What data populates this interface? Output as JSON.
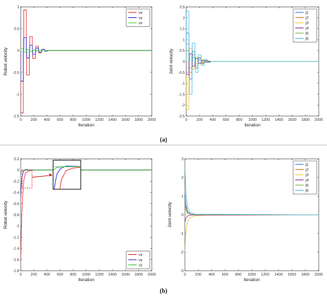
{
  "captions": [
    "(a)",
    "(b)"
  ],
  "colors": {
    "x": "#e8232a",
    "y": "#2424d8",
    "z": "#33cc33",
    "j1": "#1f77d4",
    "j2": "#e8702a",
    "j3": "#f2c12e",
    "j4": "#7e2f8e",
    "j5": "#77ac30",
    "j6": "#4dbeee",
    "arrow": "#c00000"
  },
  "chart_data": [
    {
      "type": "line",
      "panel": "(a) left",
      "xlabel": "Iteration",
      "ylabel": "Robot velocity",
      "xlim": [
        0,
        2000
      ],
      "ylim": [
        -1.5,
        1
      ],
      "xticks": [
        "0",
        "200",
        "400",
        "600",
        "800",
        "1000",
        "1200",
        "1400",
        "1600",
        "1800",
        "2000"
      ],
      "yticks": [
        "-1.5",
        "-1",
        "-0.5",
        "0",
        "0.5",
        "1"
      ],
      "legend": {
        "position": "top-right"
      },
      "grid": false,
      "series": [
        {
          "name": "vx",
          "color_key": "x",
          "style": "square-oscillation",
          "amplitudes": [
            -1.43,
            0.93,
            -0.56,
            0.32,
            -0.18,
            0.1,
            -0.055,
            0.03,
            -0.015
          ],
          "half_period": 40,
          "settle": 600
        },
        {
          "name": "vy",
          "color_key": "y",
          "style": "square-oscillation",
          "amplitudes": [
            -0.7,
            0.3,
            -0.17,
            0.12,
            -0.09,
            0.06,
            -0.04,
            0.025,
            -0.012
          ],
          "half_period": 40,
          "settle": 600
        },
        {
          "name": "vz",
          "color_key": "z",
          "style": "square-oscillation",
          "amplitudes": [
            0.05,
            -0.04,
            0.03,
            -0.02,
            0.015,
            -0.01,
            0.006,
            -0.004
          ],
          "half_period": 40,
          "settle": 600
        }
      ]
    },
    {
      "type": "line",
      "panel": "(a) right",
      "xlabel": "Iteration",
      "ylabel": "Joint velocity",
      "xlim": [
        0,
        2000
      ],
      "ylim": [
        -2.5,
        2.5
      ],
      "xticks": [
        "0",
        "200",
        "400",
        "600",
        "800",
        "1000",
        "1200",
        "1400",
        "1600",
        "1800",
        "2000"
      ],
      "yticks": [
        "-2.5",
        "-2",
        "-1.5",
        "-1",
        "-0.5",
        "0",
        "0.5",
        "1",
        "1.5",
        "2",
        "2.5"
      ],
      "legend": {
        "position": "top-right"
      },
      "grid": false,
      "series": [
        {
          "name": "j1",
          "color_key": "j1",
          "style": "square-oscillation",
          "amplitudes": [
            1.3,
            -0.8,
            0.45,
            -0.3,
            0.18,
            -0.1,
            0.05,
            -0.02
          ],
          "half_period": 40,
          "settle": 550
        },
        {
          "name": "j2",
          "color_key": "j2",
          "style": "square-oscillation",
          "amplitudes": [
            0.8,
            -0.5,
            0.3,
            -0.2,
            0.12,
            -0.07,
            0.04,
            -0.02
          ],
          "half_period": 40,
          "settle": 550
        },
        {
          "name": "j3",
          "color_key": "j3",
          "style": "square-oscillation",
          "amplitudes": [
            -2.2,
            0.6,
            -0.35,
            0.2,
            -0.12,
            0.07,
            -0.04,
            0.02
          ],
          "half_period": 40,
          "settle": 550
        },
        {
          "name": "j4",
          "color_key": "j4",
          "style": "square-oscillation",
          "amplitudes": [
            -0.6,
            0.35,
            -0.22,
            0.14,
            -0.08,
            0.05,
            -0.03,
            0.015
          ],
          "half_period": 40,
          "settle": 550
        },
        {
          "name": "j5",
          "color_key": "j5",
          "style": "square-oscillation",
          "amplitudes": [
            0.5,
            -0.3,
            0.18,
            -0.1,
            0.06,
            -0.03,
            0.02,
            -0.01
          ],
          "half_period": 40,
          "settle": 550
        },
        {
          "name": "j6",
          "color_key": "j6",
          "style": "square-oscillation",
          "amplitudes": [
            2.3,
            -1.5,
            0.85,
            -0.5,
            0.3,
            -0.18,
            0.1,
            -0.05
          ],
          "half_period": 40,
          "settle": 550
        }
      ]
    },
    {
      "type": "line",
      "panel": "(b) left",
      "xlabel": "Iteration",
      "ylabel": "Robot velocity",
      "xlim": [
        0,
        2000
      ],
      "ylim": [
        -1.8,
        0.2
      ],
      "xticks": [
        "0",
        "200",
        "400",
        "600",
        "800",
        "1000",
        "1200",
        "1400",
        "1600",
        "1800",
        "2000"
      ],
      "yticks": [
        "-1.8",
        "-1.6",
        "-1.4",
        "-1.2",
        "-1",
        "-0.8",
        "-0.6",
        "-0.4",
        "-0.2",
        "0",
        "0.2"
      ],
      "legend": {
        "position": "bottom-right"
      },
      "grid": false,
      "zoom_inset": {
        "source_x": [
          0,
          150
        ],
        "source_y": [
          -0.32,
          0.0
        ],
        "inset_y": [
          -0.35,
          0.1
        ]
      },
      "series": [
        {
          "name": "vx",
          "color_key": "x",
          "style": "smooth-converge",
          "points": [
            [
              0,
              -1.62
            ],
            [
              10,
              -1.1
            ],
            [
              25,
              -0.55
            ],
            [
              45,
              -0.2
            ],
            [
              70,
              -0.06
            ],
            [
              110,
              -0.02
            ],
            [
              200,
              0
            ],
            [
              2000,
              0
            ]
          ]
        },
        {
          "name": "vy",
          "color_key": "y",
          "style": "smooth-converge",
          "points": [
            [
              0,
              -0.5
            ],
            [
              8,
              -0.3
            ],
            [
              20,
              -0.12
            ],
            [
              40,
              -0.03
            ],
            [
              70,
              0.01
            ],
            [
              120,
              0.005
            ],
            [
              200,
              0
            ],
            [
              2000,
              0
            ]
          ]
        },
        {
          "name": "vz",
          "color_key": "z",
          "style": "smooth-converge",
          "points": [
            [
              0,
              -0.06
            ],
            [
              20,
              -0.01
            ],
            [
              60,
              0
            ],
            [
              2000,
              0
            ]
          ]
        }
      ]
    },
    {
      "type": "line",
      "panel": "(b) right",
      "xlabel": "Iteration",
      "ylabel": "Joint velocity",
      "xlim": [
        0,
        2000
      ],
      "ylim": [
        -3,
        3
      ],
      "xticks": [
        "0",
        "200",
        "400",
        "600",
        "800",
        "1000",
        "1200",
        "1400",
        "1600",
        "1800",
        "2000"
      ],
      "yticks": [
        "-3",
        "-2",
        "-1",
        "0",
        "1",
        "2",
        "3"
      ],
      "legend": {
        "position": "top-right"
      },
      "grid": false,
      "series": [
        {
          "name": "j1",
          "color_key": "j1",
          "style": "smooth-converge",
          "points": [
            [
              0,
              1.2
            ],
            [
              15,
              0.55
            ],
            [
              40,
              0.18
            ],
            [
              80,
              0.05
            ],
            [
              150,
              0.01
            ],
            [
              2000,
              0
            ]
          ]
        },
        {
          "name": "j2",
          "color_key": "j2",
          "style": "smooth-converge",
          "points": [
            [
              0,
              0.9
            ],
            [
              15,
              0.4
            ],
            [
              40,
              0.12
            ],
            [
              80,
              0.04
            ],
            [
              150,
              0.01
            ],
            [
              2000,
              0
            ]
          ]
        },
        {
          "name": "j3",
          "color_key": "j3",
          "style": "smooth-converge",
          "points": [
            [
              0,
              -2.0
            ],
            [
              15,
              -0.9
            ],
            [
              40,
              -0.35
            ],
            [
              80,
              -0.15
            ],
            [
              150,
              -0.06
            ],
            [
              300,
              -0.02
            ],
            [
              2000,
              0
            ]
          ]
        },
        {
          "name": "j4",
          "color_key": "j4",
          "style": "smooth-converge",
          "points": [
            [
              0,
              -0.4
            ],
            [
              15,
              -0.18
            ],
            [
              40,
              -0.06
            ],
            [
              100,
              -0.01
            ],
            [
              2000,
              0
            ]
          ]
        },
        {
          "name": "j5",
          "color_key": "j5",
          "style": "smooth-converge",
          "points": [
            [
              0,
              0.6
            ],
            [
              15,
              0.25
            ],
            [
              40,
              0.08
            ],
            [
              100,
              0.02
            ],
            [
              2000,
              0
            ]
          ]
        },
        {
          "name": "j6",
          "color_key": "j6",
          "style": "smooth-converge",
          "points": [
            [
              0,
              2.6
            ],
            [
              15,
              1.2
            ],
            [
              40,
              0.4
            ],
            [
              80,
              0.12
            ],
            [
              150,
              0.03
            ],
            [
              2000,
              0
            ]
          ]
        }
      ]
    }
  ]
}
